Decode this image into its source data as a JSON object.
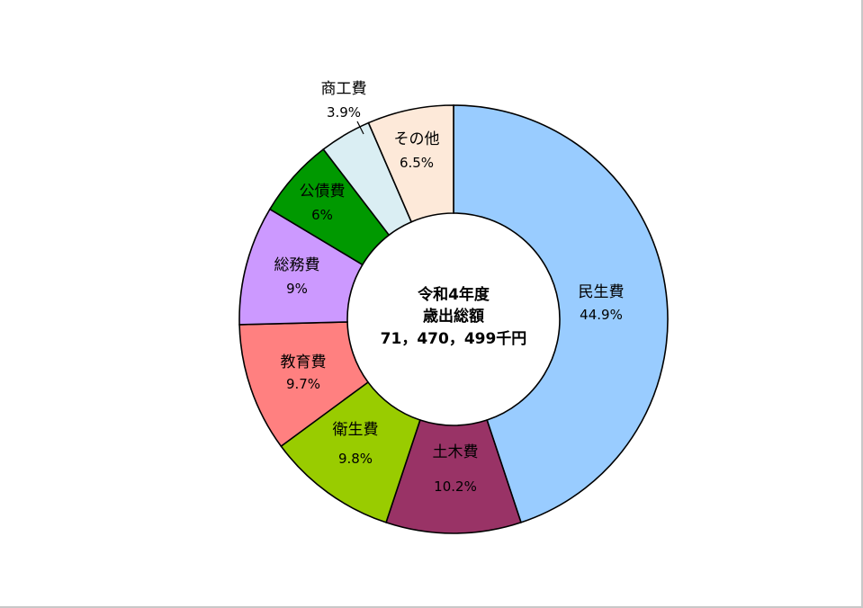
{
  "chart_data": {
    "type": "pie",
    "donut": true,
    "center_text": [
      "令和4年度",
      "歳出総額",
      "71，470，499千円"
    ],
    "slices": [
      {
        "label": "民生費",
        "value": 44.9,
        "display": "44.9%",
        "color": "#99ccff"
      },
      {
        "label": "土木費",
        "value": 10.2,
        "display": "10.2%",
        "color": "#993366"
      },
      {
        "label": "衛生費",
        "value": 9.8,
        "display": "9.8%",
        "color": "#99cc00"
      },
      {
        "label": "教育費",
        "value": 9.7,
        "display": "9.7%",
        "color": "#ff8080"
      },
      {
        "label": "総務費",
        "value": 9.0,
        "display": "9%",
        "color": "#cc99ff"
      },
      {
        "label": "公債費",
        "value": 6.0,
        "display": "6%",
        "color": "#009900"
      },
      {
        "label": "商工費",
        "value": 3.9,
        "display": "3.9%",
        "color": "#daeef3"
      },
      {
        "label": "その他",
        "value": 6.5,
        "display": "6.5%",
        "color": "#fde9d9"
      }
    ],
    "start": "12 o'clock",
    "direction": "clockwise",
    "legend": "none"
  }
}
